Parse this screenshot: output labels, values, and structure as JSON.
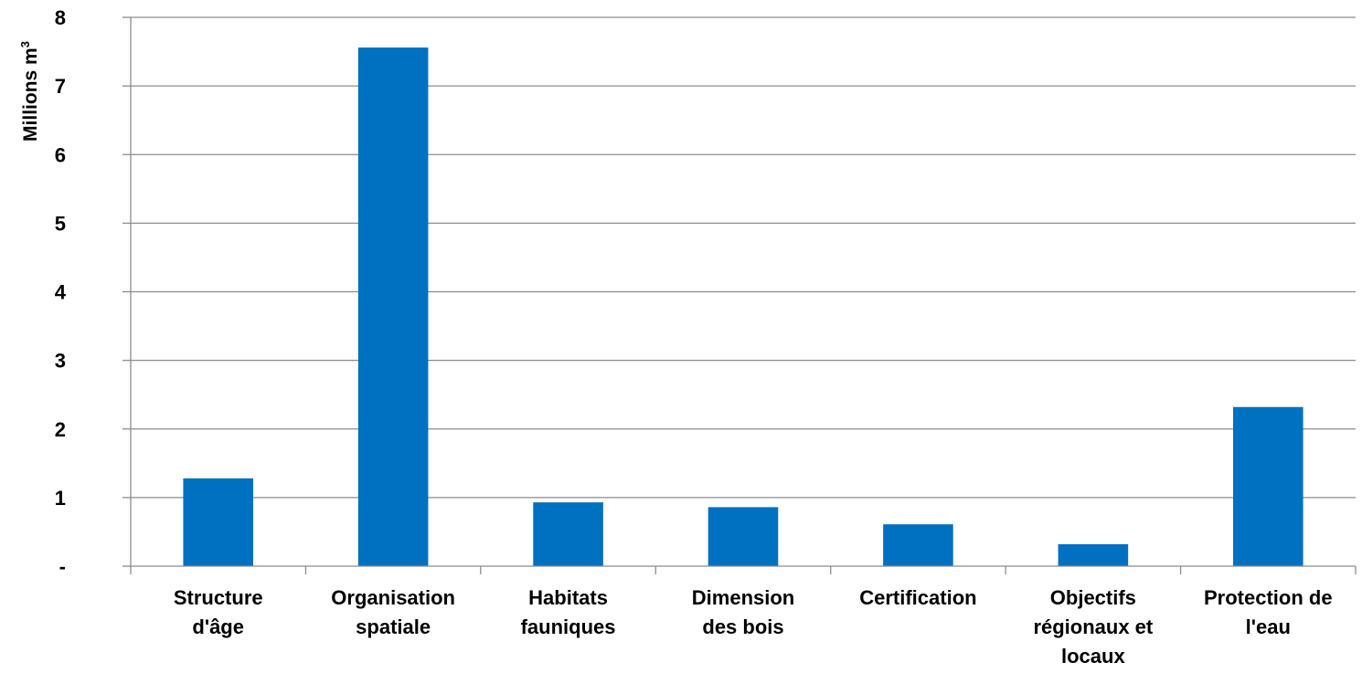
{
  "chart_data": {
    "type": "bar",
    "ylabel_main": "Millions m",
    "ylabel_sup": "3",
    "ylim": [
      0,
      8
    ],
    "yticks": [
      {
        "value": 0,
        "label": "-"
      },
      {
        "value": 1,
        "label": "1"
      },
      {
        "value": 2,
        "label": "2"
      },
      {
        "value": 3,
        "label": "3"
      },
      {
        "value": 4,
        "label": "4"
      },
      {
        "value": 5,
        "label": "5"
      },
      {
        "value": 6,
        "label": "6"
      },
      {
        "value": 7,
        "label": "7"
      },
      {
        "value": 8,
        "label": "8"
      }
    ],
    "grid": true,
    "bar_color": "#0070C0",
    "categories": [
      {
        "lines": [
          "Structure",
          "d'âge"
        ]
      },
      {
        "lines": [
          "Organisation",
          "spatiale"
        ]
      },
      {
        "lines": [
          "Habitats",
          "fauniques"
        ]
      },
      {
        "lines": [
          "Dimension",
          "des bois"
        ]
      },
      {
        "lines": [
          "Certification"
        ]
      },
      {
        "lines": [
          "Objectifs",
          "régionaux et",
          "locaux"
        ]
      },
      {
        "lines": [
          "Protection de",
          "l'eau"
        ]
      }
    ],
    "values": [
      1.28,
      7.56,
      0.93,
      0.86,
      0.61,
      0.32,
      2.32
    ]
  }
}
